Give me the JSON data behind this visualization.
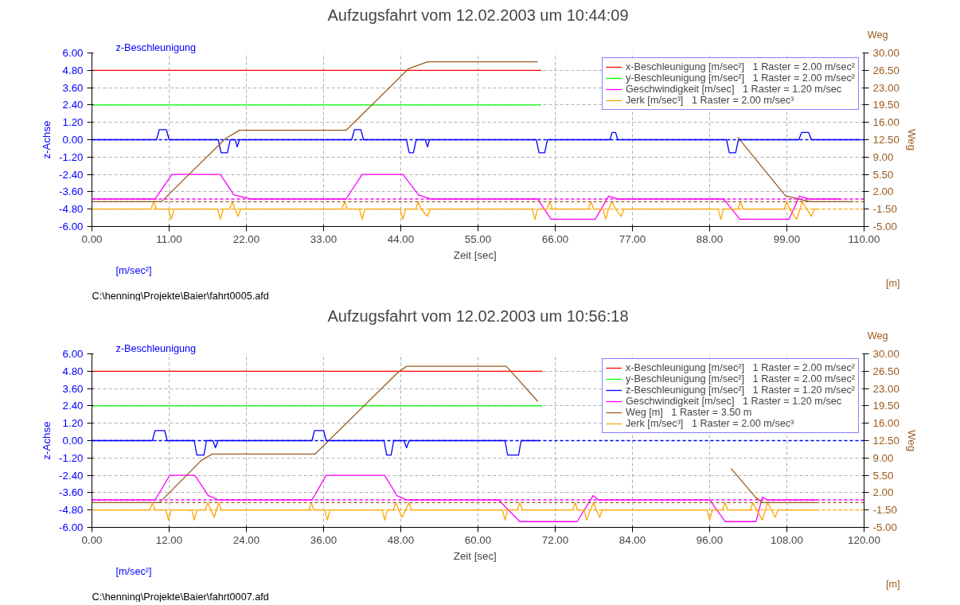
{
  "chart_data": [
    {
      "type": "line",
      "title": "Aufzugsfahrt vom 12.02.2003 um 10:44:09",
      "xlabel": "Zeit   [sec]",
      "ylabel": "z-Achse",
      "y2label": "Weg",
      "annotations": [
        "z-Beschleunigung",
        "Weg",
        "[m/sec²]",
        "[m]",
        "C:\\henning\\Projekte\\Baier\\fahrt0005.afd"
      ],
      "xlim": [
        0,
        110
      ],
      "xticks": [
        {
          "value": 0,
          "label": "0.00"
        },
        {
          "value": 11,
          "label": "11.00"
        },
        {
          "value": 22,
          "label": "22.00"
        },
        {
          "value": 33,
          "label": "33.00"
        },
        {
          "value": 44,
          "label": "44.00"
        },
        {
          "value": 55,
          "label": "55.00"
        },
        {
          "value": 66,
          "label": "66.00"
        },
        {
          "value": 77,
          "label": "77.00"
        },
        {
          "value": 88,
          "label": "88.00"
        },
        {
          "value": 99,
          "label": "99.00"
        },
        {
          "value": 110,
          "label": "110.00"
        }
      ],
      "ylim": [
        -6,
        6
      ],
      "yticks": [
        {
          "value": 6,
          "label": "6.00"
        },
        {
          "value": 4.8,
          "label": "4.80"
        },
        {
          "value": 3.6,
          "label": "3.60"
        },
        {
          "value": 2.4,
          "label": "2.40"
        },
        {
          "value": 1.2,
          "label": "1.20"
        },
        {
          "value": 0,
          "label": "0.00"
        },
        {
          "value": -1.2,
          "label": "-1.20"
        },
        {
          "value": -2.4,
          "label": "-2.40"
        },
        {
          "value": -3.6,
          "label": "-3.60"
        },
        {
          "value": -4.8,
          "label": "-4.80"
        },
        {
          "value": -6,
          "label": "-6.00"
        }
      ],
      "y2lim": [
        -5,
        30
      ],
      "y2ticks": [
        {
          "value": 30,
          "label": "30.00"
        },
        {
          "value": 26.5,
          "label": "26.50"
        },
        {
          "value": 23,
          "label": "23.00"
        },
        {
          "value": 19.5,
          "label": "19.50"
        },
        {
          "value": 16,
          "label": "16.00"
        },
        {
          "value": 12.5,
          "label": "12.50"
        },
        {
          "value": 9,
          "label": "9.00"
        },
        {
          "value": 5.5,
          "label": "5.50"
        },
        {
          "value": 2,
          "label": "2.00"
        },
        {
          "value": -1.5,
          "label": "-1.50"
        },
        {
          "value": -5,
          "label": "-5.00"
        }
      ],
      "grid": true,
      "legend": "top right",
      "ref_lines": [
        {
          "axis": "y",
          "value": 0,
          "color": "#0000ff",
          "line_style": "dashed"
        },
        {
          "axis": "y",
          "value": -4.1,
          "color": "#ff00ff",
          "line_style": "dashed"
        },
        {
          "axis": "y",
          "value": -4.8,
          "color": "#ffa500",
          "line_style": "dashed"
        },
        {
          "axis": "y2",
          "value": 0,
          "color": "#9c5a1e",
          "line_style": "dashed"
        }
      ],
      "series": [
        {
          "name": "x-Beschleunigung [m/sec²]   1 Raster = 2.00 m/sec²",
          "color": "#ff0000",
          "x": [
            0,
            64
          ],
          "values": [
            4.8,
            4.8
          ]
        },
        {
          "name": "y-Beschleunigung [m/sec²]   1 Raster = 2.00 m/sec²",
          "color": "#00ff00",
          "x": [
            0,
            64
          ],
          "values": [
            2.4,
            2.4
          ]
        },
        {
          "color": "#0000ff",
          "x": [
            0,
            9.2,
            9.6,
            10.6,
            11,
            18,
            18.4,
            19.3,
            19.7,
            20.4,
            20.7,
            21,
            37,
            37.4,
            38.3,
            38.7,
            44.8,
            45.2,
            45.8,
            46.2,
            47.5,
            47.8,
            48.1,
            63.3,
            63.7,
            64.5,
            64.9,
            73.8,
            74.1,
            74.6,
            74.9,
            90.4,
            90.8,
            91.7,
            92.1,
            100.7,
            101.1,
            102.1,
            102.5,
            109.5
          ],
          "values": [
            0,
            0,
            0.7,
            0.7,
            0,
            0,
            -0.9,
            -0.9,
            0,
            0,
            -0.5,
            0,
            0,
            0.7,
            0.7,
            0,
            0,
            -0.9,
            -0.9,
            0,
            0,
            -0.5,
            0,
            0,
            -0.9,
            -0.9,
            0,
            0,
            0.5,
            0.5,
            0,
            0,
            -0.9,
            -0.9,
            0,
            0,
            0.5,
            0.5,
            0,
            0
          ]
        },
        {
          "name": "Geschwindigkeit [m/sec]   1 Raster = 1.20 m/sec",
          "color": "#ff00ff",
          "x": [
            0,
            9,
            11.4,
            18.3,
            20.2,
            22.6,
            36.2,
            38.5,
            44.3,
            46.5,
            48.2,
            63.5,
            65.4,
            71.7,
            73.6,
            74.9,
            90,
            92.3,
            99.3,
            100.8,
            102.1,
            106.6
          ],
          "values": [
            -4.1,
            -4.1,
            -2.4,
            -2.4,
            -3.8,
            -4.1,
            -4.1,
            -2.4,
            -2.4,
            -3.8,
            -4.1,
            -4.1,
            -5.5,
            -5.5,
            -3.9,
            -4.1,
            -4.1,
            -5.5,
            -5.5,
            -3.9,
            -4.1,
            -4.1
          ]
        },
        {
          "color": "#9c5a1e",
          "axis": "y2",
          "x": [
            0,
            9.9,
            19,
            21,
            36.2,
            45.1,
            47.8,
            63.5,
            64,
            92,
            98.8,
            101.3,
            102.5,
            108.5
          ],
          "values": [
            0,
            0,
            12.7,
            14.4,
            14.4,
            26.8,
            28.2,
            28.2,
            null,
            13,
            1.2,
            0.3,
            0,
            0
          ]
        },
        {
          "name": "Jerk [m/sec³]   1 Raster = 2.00 m/sec³",
          "color": "#ffa500",
          "x": [
            0,
            8.4,
            8.8,
            9.2,
            10.9,
            11.3,
            11.7,
            17.9,
            18.3,
            18.7,
            19.6,
            20,
            20.4,
            20.8,
            21.2,
            35.6,
            36,
            36.4,
            38.1,
            38.5,
            38.9,
            43.9,
            44.3,
            44.7,
            46.1,
            46.5,
            46.9,
            47.8,
            48.2,
            62.7,
            63.1,
            63.5,
            64.8,
            65.2,
            65.6,
            70.7,
            71.1,
            71.5,
            72.8,
            73.2,
            73.6,
            74.1,
            74.6,
            75.4,
            75.8,
            89.2,
            89.6,
            90,
            92,
            92.4,
            92.8,
            98.6,
            99,
            99.4,
            100.4,
            101.2,
            102.5,
            102.9,
            103.5
          ],
          "values": [
            -4.8,
            -4.8,
            -4.3,
            -4.8,
            -4.8,
            -5.5,
            -4.8,
            -4.8,
            -5.5,
            -4.8,
            -4.8,
            -4.3,
            -4.8,
            -5.3,
            -4.8,
            -4.8,
            -4.3,
            -4.8,
            -4.8,
            -5.5,
            -4.8,
            -4.8,
            -5.5,
            -4.8,
            -4.8,
            -4.3,
            -4.8,
            -5.3,
            -4.8,
            -4.8,
            -5.5,
            -4.8,
            -4.8,
            -4.3,
            -4.8,
            -4.8,
            -4.3,
            -4.8,
            -4.8,
            -5.5,
            -4.8,
            -4.3,
            -4.8,
            -5.3,
            -4.8,
            -4.8,
            -5.5,
            -4.8,
            -4.8,
            -4.3,
            -4.8,
            -4.8,
            -4.3,
            -4.8,
            -5.5,
            -4.3,
            -5.3,
            -4.8,
            -4.8
          ]
        }
      ]
    },
    {
      "type": "line",
      "title": "Aufzugsfahrt vom 12.02.2003 um 10:56:18",
      "xlabel": "Zeit   [sec]",
      "ylabel": "z-Achse",
      "y2label": "Weg",
      "annotations": [
        "z-Beschleunigung",
        "Weg",
        "[m/sec²]",
        "[m]",
        "C:\\henning\\Projekte\\Baier\\fahrt0007.afd"
      ],
      "xlim": [
        0,
        120
      ],
      "xticks": [
        {
          "value": 0,
          "label": "0.00"
        },
        {
          "value": 12,
          "label": "12.00"
        },
        {
          "value": 24,
          "label": "24.00"
        },
        {
          "value": 36,
          "label": "36.00"
        },
        {
          "value": 48,
          "label": "48.00"
        },
        {
          "value": 60,
          "label": "60.00"
        },
        {
          "value": 72,
          "label": "72.00"
        },
        {
          "value": 84,
          "label": "84.00"
        },
        {
          "value": 96,
          "label": "96.00"
        },
        {
          "value": 108,
          "label": "108.00"
        },
        {
          "value": 120,
          "label": "120.00"
        }
      ],
      "ylim": [
        -6,
        6
      ],
      "yticks": [
        {
          "value": 6,
          "label": "6.00"
        },
        {
          "value": 4.8,
          "label": "4.80"
        },
        {
          "value": 3.6,
          "label": "3.60"
        },
        {
          "value": 2.4,
          "label": "2.40"
        },
        {
          "value": 1.2,
          "label": "1.20"
        },
        {
          "value": 0,
          "label": "0.00"
        },
        {
          "value": -1.2,
          "label": "-1.20"
        },
        {
          "value": -2.4,
          "label": "-2.40"
        },
        {
          "value": -3.6,
          "label": "-3.60"
        },
        {
          "value": -4.8,
          "label": "-4.80"
        },
        {
          "value": -6,
          "label": "-6.00"
        }
      ],
      "y2lim": [
        -5,
        30
      ],
      "y2ticks": [
        {
          "value": 30,
          "label": "30.00"
        },
        {
          "value": 26.5,
          "label": "26.50"
        },
        {
          "value": 23,
          "label": "23.00"
        },
        {
          "value": 19.5,
          "label": "19.50"
        },
        {
          "value": 16,
          "label": "16.00"
        },
        {
          "value": 12.5,
          "label": "12.50"
        },
        {
          "value": 9,
          "label": "9.00"
        },
        {
          "value": 5.5,
          "label": "5.50"
        },
        {
          "value": 2,
          "label": "2.00"
        },
        {
          "value": -1.5,
          "label": "-1.50"
        },
        {
          "value": -5,
          "label": "-5.00"
        }
      ],
      "grid": true,
      "legend": "top right",
      "ref_lines": [
        {
          "axis": "y",
          "value": 0,
          "color": "#0000ff",
          "line_style": "dashed"
        },
        {
          "axis": "y",
          "value": -4.1,
          "color": "#ff00ff",
          "line_style": "dashed"
        },
        {
          "axis": "y",
          "value": -4.8,
          "color": "#ffa500",
          "line_style": "dashed"
        },
        {
          "axis": "y2",
          "value": 0,
          "color": "#9c5a1e",
          "line_style": "dashed"
        }
      ],
      "series": [
        {
          "name": "x-Beschleunigung [m/sec²]   1 Raster = 2.00 m/sec²",
          "color": "#ff0000",
          "x": [
            0,
            70
          ],
          "values": [
            4.8,
            4.8
          ]
        },
        {
          "name": "y-Beschleunigung [m/sec²]   1 Raster = 2.00 m/sec²",
          "color": "#00ff00",
          "x": [
            0,
            70
          ],
          "values": [
            2.4,
            2.4
          ]
        },
        {
          "name": "z-Beschleunigung [m/sec²]   1 Raster = 1.20 m/sec²",
          "color": "#0000ff",
          "x": [
            0,
            9.4,
            9.8,
            11.3,
            11.7,
            15.9,
            16.3,
            17.4,
            17.8,
            18.8,
            19.2,
            19.6,
            34.2,
            34.6,
            36,
            36.4,
            45.4,
            45.8,
            46.5,
            46.9,
            48.5,
            48.9,
            49.3,
            64.2,
            64.6,
            66.3,
            66.7,
            69.5
          ],
          "values": [
            0,
            0,
            0.7,
            0.7,
            0,
            0,
            -1,
            -1,
            0,
            0,
            -0.5,
            0,
            0,
            0.7,
            0.7,
            0,
            0,
            -1,
            -1,
            0,
            0,
            -0.5,
            0,
            0,
            -1,
            -1,
            0,
            0
          ]
        },
        {
          "name": "Geschwindigkeit [m/sec]   1 Raster = 1.20 m/sec",
          "color": "#ff00ff",
          "x": [
            0,
            9.8,
            12.1,
            16,
            18.1,
            19.7,
            34.2,
            36.4,
            45.5,
            47.4,
            48.9,
            63.2,
            66.5,
            75.4,
            77.9,
            78.7,
            96,
            98.4,
            103.2,
            104.2,
            105,
            112.7
          ],
          "values": [
            -4.1,
            -4.1,
            -2.4,
            -2.4,
            -3.8,
            -4.1,
            -4.1,
            -2.4,
            -2.4,
            -3.8,
            -4.1,
            -4.1,
            -5.6,
            -5.6,
            -3.8,
            -4.1,
            -4.1,
            -5.6,
            -5.6,
            -3.9,
            -4.1,
            -4.1
          ]
        },
        {
          "name": "Weg [m]   1 Raster = 3.50 m",
          "color": "#9c5a1e",
          "axis": "y2",
          "x": [
            0,
            10.5,
            17,
            18.7,
            34.7,
            47.5,
            48.9,
            64.4,
            69.3,
            70,
            99.3,
            103.2,
            104.2,
            112.7
          ],
          "values": [
            0,
            0,
            8.5,
            9.8,
            9.8,
            26.2,
            27.5,
            27.5,
            20.4,
            null,
            6.9,
            1,
            0,
            0
          ]
        },
        {
          "name": "Jerk [m/sec³]   1 Raster = 2.00 m/sec³",
          "color": "#ffa500",
          "x": [
            0,
            9,
            9.4,
            9.8,
            11.5,
            11.9,
            12.3,
            15.5,
            15.9,
            16.3,
            17.6,
            18,
            19,
            19.7,
            20.1,
            33.7,
            34.1,
            34.5,
            36.2,
            36.6,
            37,
            45.1,
            45.5,
            45.9,
            46.8,
            47.2,
            48.2,
            49.3,
            49.7,
            63.8,
            64.2,
            64.6,
            66.1,
            66.5,
            66.9,
            74.7,
            75.1,
            75.5,
            76.5,
            76.9,
            77.9,
            78.9,
            79.3,
            95.6,
            96,
            96.4,
            98,
            98.4,
            98.8,
            102.3,
            102.7,
            104.2,
            105,
            106.2,
            106.6,
            112.7
          ],
          "values": [
            -4.8,
            -4.8,
            -4.3,
            -4.8,
            -4.8,
            -5.5,
            -4.8,
            -4.8,
            -5.5,
            -4.8,
            -4.8,
            -4.3,
            -5.3,
            -4.3,
            -4.8,
            -4.8,
            -4.3,
            -4.8,
            -4.8,
            -5.5,
            -4.8,
            -4.8,
            -5.5,
            -4.8,
            -4.8,
            -4.3,
            -5.3,
            -4.3,
            -4.8,
            -4.8,
            -5.5,
            -4.8,
            -4.8,
            -4.3,
            -4.8,
            -4.8,
            -4.3,
            -4.8,
            -4.8,
            -5.5,
            -4.3,
            -5.3,
            -4.8,
            -4.8,
            -5.5,
            -4.8,
            -4.8,
            -4.3,
            -4.8,
            -4.8,
            -4.3,
            -5.5,
            -4.3,
            -5.3,
            -4.8,
            -4.8
          ]
        }
      ]
    }
  ]
}
